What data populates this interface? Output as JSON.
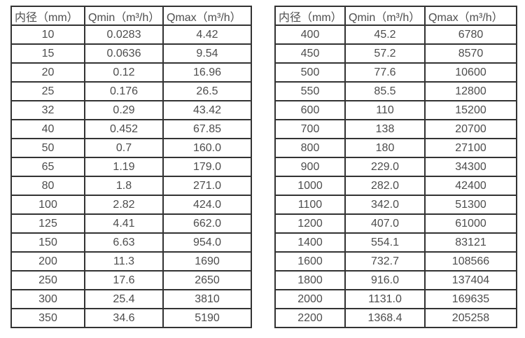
{
  "page": {
    "background_color": "#ffffff",
    "text_color": "#4d4d4d",
    "border_color": "#333333"
  },
  "tables": [
    {
      "name": "flow-rate-table-small-diameters",
      "headers": [
        "内径（mm）",
        "Qmin（m³/h）",
        "Qmax（m³/h）"
      ],
      "rows": [
        [
          "10",
          "0.0283",
          "4.42"
        ],
        [
          "15",
          "0.0636",
          "9.54"
        ],
        [
          "20",
          "0.12",
          "16.96"
        ],
        [
          "25",
          "0.176",
          "26.5"
        ],
        [
          "32",
          "0.29",
          "43.42"
        ],
        [
          "40",
          "0.452",
          "67.85"
        ],
        [
          "50",
          "0.7",
          "160.0"
        ],
        [
          "65",
          "1.19",
          "179.0"
        ],
        [
          "80",
          "1.8",
          "271.0"
        ],
        [
          "100",
          "2.82",
          "424.0"
        ],
        [
          "125",
          "4.41",
          "662.0"
        ],
        [
          "150",
          "6.63",
          "954.0"
        ],
        [
          "200",
          "11.3",
          "1690"
        ],
        [
          "250",
          "17.6",
          "2650"
        ],
        [
          "300",
          "25.4",
          "3810"
        ],
        [
          "350",
          "34.6",
          "5190"
        ]
      ]
    },
    {
      "name": "flow-rate-table-large-diameters",
      "headers": [
        "内径（mm）",
        "Qmin（m³/h）",
        "Qmax（m³/h）"
      ],
      "rows": [
        [
          "400",
          "45.2",
          "6780"
        ],
        [
          "450",
          "57.2",
          "8570"
        ],
        [
          "500",
          "77.6",
          "10600"
        ],
        [
          "550",
          "85.5",
          "12800"
        ],
        [
          "600",
          "110",
          "15200"
        ],
        [
          "700",
          "138",
          "20700"
        ],
        [
          "800",
          "180",
          "27100"
        ],
        [
          "900",
          "229.0",
          "34300"
        ],
        [
          "1000",
          "282.0",
          "42400"
        ],
        [
          "1100",
          "342.0",
          "51300"
        ],
        [
          "1200",
          "407.0",
          "61000"
        ],
        [
          "1400",
          "554.1",
          "83121"
        ],
        [
          "1600",
          "732.7",
          "108566"
        ],
        [
          "1800",
          "916.0",
          "137404"
        ],
        [
          "2000",
          "1131.0",
          "169635"
        ],
        [
          "2200",
          "1368.4",
          "205258"
        ]
      ]
    }
  ]
}
